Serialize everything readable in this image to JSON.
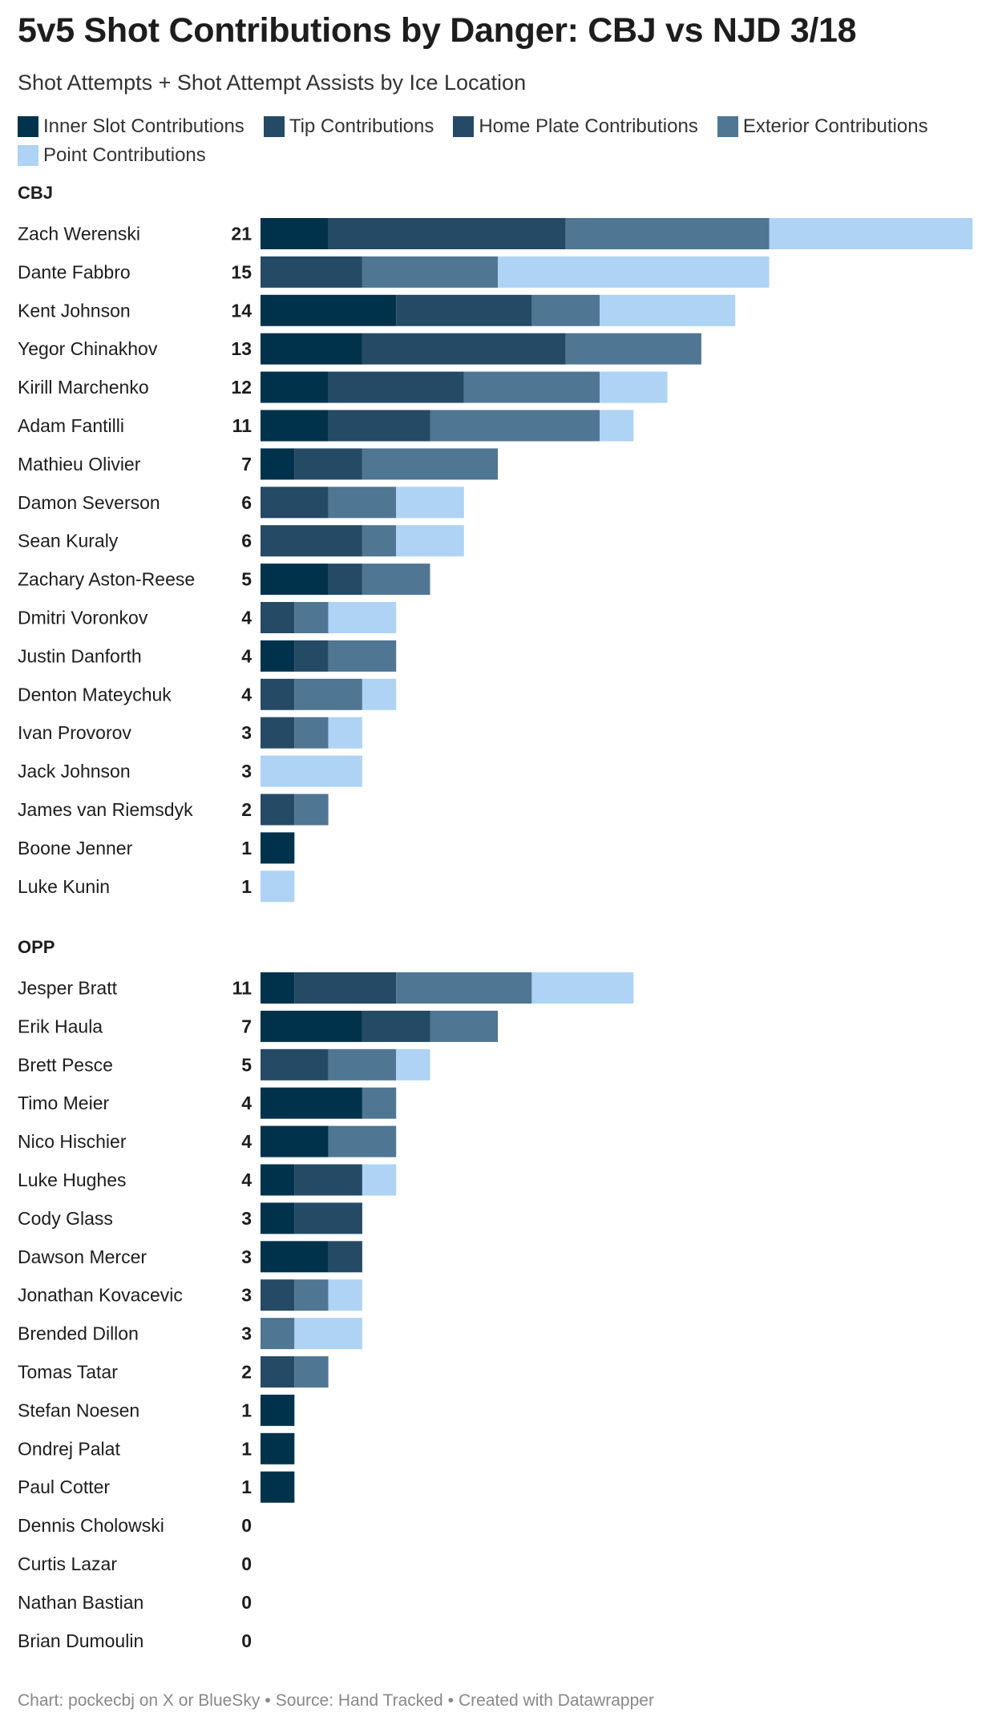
{
  "title": "5v5 Shot Contributions by Danger: CBJ vs NJD 3/18",
  "subtitle": "Shot Attempts + Shot Attempt Assists by Ice Location",
  "footer": {
    "chart_credit": "Chart: pockecbj on X or BlueSky",
    "source": "Source: Hand Tracked",
    "created_with": "Created with Datawrapper",
    "separator": "•"
  },
  "chart_data": {
    "type": "bar",
    "orientation": "horizontal",
    "stacked": true,
    "legend_position": "top",
    "grid": false,
    "series": [
      {
        "key": "inner_slot",
        "name": "Inner Slot Contributions",
        "color": "#00324b"
      },
      {
        "key": "tip",
        "name": "Tip Contributions",
        "color": "#244a66"
      },
      {
        "key": "home_plate",
        "name": "Home Plate Contributions",
        "color": "#244a66"
      },
      {
        "key": "exterior",
        "name": "Exterior Contributions",
        "color": "#4f7693"
      },
      {
        "key": "point",
        "name": "Point Contributions",
        "color": "#aed3f4"
      }
    ],
    "groups": [
      {
        "label": "CBJ",
        "players": [
          {
            "name": "Zach Werenski",
            "total": 21,
            "values": [
              2,
              0,
              7,
              6,
              6
            ]
          },
          {
            "name": "Dante Fabbro",
            "total": 15,
            "values": [
              0,
              0,
              3,
              4,
              8
            ]
          },
          {
            "name": "Kent Johnson",
            "total": 14,
            "values": [
              4,
              0,
              4,
              2,
              4
            ]
          },
          {
            "name": "Yegor Chinakhov",
            "total": 13,
            "values": [
              3,
              0,
              6,
              4,
              0
            ]
          },
          {
            "name": "Kirill Marchenko",
            "total": 12,
            "values": [
              2,
              0,
              4,
              4,
              2
            ]
          },
          {
            "name": "Adam Fantilli",
            "total": 11,
            "values": [
              2,
              0,
              3,
              5,
              1
            ]
          },
          {
            "name": "Mathieu Olivier",
            "total": 7,
            "values": [
              1,
              0,
              2,
              4,
              0
            ]
          },
          {
            "name": "Damon Severson",
            "total": 6,
            "values": [
              0,
              0,
              2,
              2,
              2
            ]
          },
          {
            "name": "Sean Kuraly",
            "total": 6,
            "values": [
              0,
              0,
              3,
              1,
              2
            ]
          },
          {
            "name": "Zachary Aston-Reese",
            "total": 5,
            "values": [
              2,
              0,
              1,
              2,
              0
            ]
          },
          {
            "name": "Dmitri Voronkov",
            "total": 4,
            "values": [
              0,
              0,
              1,
              1,
              2
            ]
          },
          {
            "name": "Justin Danforth",
            "total": 4,
            "values": [
              1,
              0,
              1,
              2,
              0
            ]
          },
          {
            "name": "Denton Mateychuk",
            "total": 4,
            "values": [
              0,
              0,
              1,
              2,
              1
            ]
          },
          {
            "name": "Ivan Provorov",
            "total": 3,
            "values": [
              0,
              0,
              1,
              1,
              1
            ]
          },
          {
            "name": "Jack Johnson",
            "total": 3,
            "values": [
              0,
              0,
              0,
              0,
              3
            ]
          },
          {
            "name": "James van Riemsdyk",
            "total": 2,
            "values": [
              0,
              0,
              1,
              1,
              0
            ]
          },
          {
            "name": "Boone Jenner",
            "total": 1,
            "values": [
              1,
              0,
              0,
              0,
              0
            ]
          },
          {
            "name": "Luke Kunin",
            "total": 1,
            "values": [
              0,
              0,
              0,
              0,
              1
            ]
          }
        ]
      },
      {
        "label": "OPP",
        "players": [
          {
            "name": "Jesper Bratt",
            "total": 11,
            "values": [
              1,
              0,
              3,
              4,
              3
            ]
          },
          {
            "name": "Erik Haula",
            "total": 7,
            "values": [
              3,
              0,
              2,
              2,
              0
            ]
          },
          {
            "name": "Brett Pesce",
            "total": 5,
            "values": [
              0,
              0,
              2,
              2,
              1
            ]
          },
          {
            "name": "Timo Meier",
            "total": 4,
            "values": [
              3,
              0,
              0,
              1,
              0
            ]
          },
          {
            "name": "Nico Hischier",
            "total": 4,
            "values": [
              2,
              0,
              0,
              2,
              0
            ]
          },
          {
            "name": "Luke Hughes",
            "total": 4,
            "values": [
              1,
              0,
              2,
              0,
              1
            ]
          },
          {
            "name": "Cody Glass",
            "total": 3,
            "values": [
              1,
              0,
              2,
              0,
              0
            ]
          },
          {
            "name": "Dawson Mercer",
            "total": 3,
            "values": [
              2,
              0,
              1,
              0,
              0
            ]
          },
          {
            "name": "Jonathan Kovacevic",
            "total": 3,
            "values": [
              0,
              0,
              1,
              1,
              1
            ]
          },
          {
            "name": "Brended Dillon",
            "total": 3,
            "values": [
              0,
              0,
              0,
              1,
              2
            ]
          },
          {
            "name": "Tomas Tatar",
            "total": 2,
            "values": [
              0,
              0,
              1,
              1,
              0
            ]
          },
          {
            "name": "Stefan Noesen",
            "total": 1,
            "values": [
              1,
              0,
              0,
              0,
              0
            ]
          },
          {
            "name": "Ondrej Palat",
            "total": 1,
            "values": [
              1,
              0,
              0,
              0,
              0
            ]
          },
          {
            "name": "Paul Cotter",
            "total": 1,
            "values": [
              1,
              0,
              0,
              0,
              0
            ]
          },
          {
            "name": "Dennis Cholowski",
            "total": 0,
            "values": [
              0,
              0,
              0,
              0,
              0
            ]
          },
          {
            "name": "Curtis Lazar",
            "total": 0,
            "values": [
              0,
              0,
              0,
              0,
              0
            ]
          },
          {
            "name": "Nathan Bastian",
            "total": 0,
            "values": [
              0,
              0,
              0,
              0,
              0
            ]
          },
          {
            "name": "Brian Dumoulin",
            "total": 0,
            "values": [
              0,
              0,
              0,
              0,
              0
            ]
          }
        ]
      }
    ]
  }
}
